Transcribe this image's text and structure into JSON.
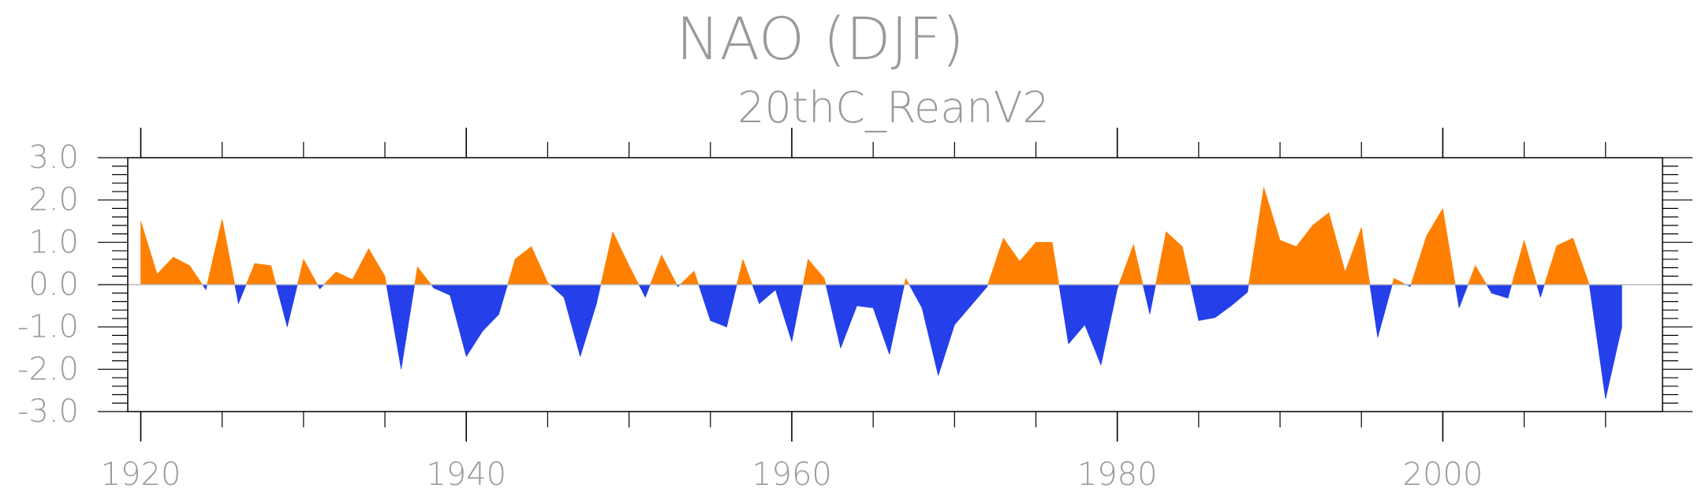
{
  "chart_data": {
    "type": "area",
    "title": "NAO (DJF)",
    "subtitle": "20thC_ReanV2",
    "xlabel": "",
    "ylabel": "",
    "xlim": [
      1919.2,
      2013.5
    ],
    "ylim": [
      -3.0,
      3.0
    ],
    "x_ticks": [
      1920,
      1940,
      1960,
      1980,
      2000
    ],
    "y_ticks": [
      3.0,
      2.0,
      1.0,
      0.0,
      -1.0,
      -2.0,
      -3.0
    ],
    "y_tick_labels": [
      "3.0",
      "2.0",
      "1.0",
      "0.0",
      "-1.0",
      "-2.0",
      "-3.0"
    ],
    "grid": false,
    "positive_color": "#ff8000",
    "negative_color": "#2540ea",
    "series": [
      {
        "x": [
          1920,
          1921,
          1922,
          1923,
          1924,
          1925,
          1926,
          1927,
          1928,
          1929,
          1930,
          1931,
          1932,
          1933,
          1934,
          1935,
          1936,
          1937,
          1938,
          1939,
          1940,
          1941,
          1942,
          1943,
          1944,
          1945,
          1946,
          1947,
          1948,
          1949,
          1950,
          1951,
          1952,
          1953,
          1954,
          1955,
          1956,
          1957,
          1958,
          1959,
          1960,
          1961,
          1962,
          1963,
          1964,
          1965,
          1966,
          1967,
          1968,
          1969,
          1970,
          1971,
          1972,
          1973,
          1974,
          1975,
          1976,
          1977,
          1978,
          1979,
          1980,
          1981,
          1982,
          1983,
          1984,
          1985,
          1986,
          1987,
          1988,
          1989,
          1990,
          1991,
          1992,
          1993,
          1994,
          1995,
          1996,
          1997,
          1998,
          1999,
          2000,
          2001,
          2002,
          2003,
          2004,
          2005,
          2006,
          2007,
          2008,
          2009,
          2010,
          2011
        ],
        "values": [
          1.5,
          0.25,
          0.65,
          0.45,
          -0.12,
          1.55,
          -0.45,
          0.5,
          0.45,
          -1.0,
          0.6,
          -0.1,
          0.3,
          0.12,
          0.85,
          0.2,
          -2.0,
          0.42,
          -0.08,
          -0.25,
          -1.7,
          -1.1,
          -0.7,
          0.6,
          0.9,
          0.05,
          -0.3,
          -1.7,
          -0.45,
          1.25,
          0.45,
          -0.3,
          0.7,
          -0.05,
          0.32,
          -0.85,
          -1.0,
          0.6,
          -0.45,
          -0.12,
          -1.35,
          0.6,
          0.15,
          -1.5,
          -0.5,
          -0.55,
          -1.65,
          0.15,
          -0.55,
          -2.15,
          -0.95,
          -0.5,
          -0.05,
          1.1,
          0.55,
          1.0,
          1.0,
          -1.4,
          -0.95,
          -1.9,
          -0.1,
          0.95,
          -0.7,
          1.25,
          0.9,
          -0.85,
          -0.78,
          -0.5,
          -0.18,
          2.3,
          1.05,
          0.9,
          1.4,
          1.7,
          0.3,
          1.35,
          -1.25,
          0.15,
          -0.05,
          1.15,
          1.8,
          -0.55,
          0.45,
          -0.2,
          -0.32,
          1.05,
          -0.3,
          0.92,
          1.1,
          0.0,
          -2.7,
          -1.0
        ]
      }
    ]
  }
}
